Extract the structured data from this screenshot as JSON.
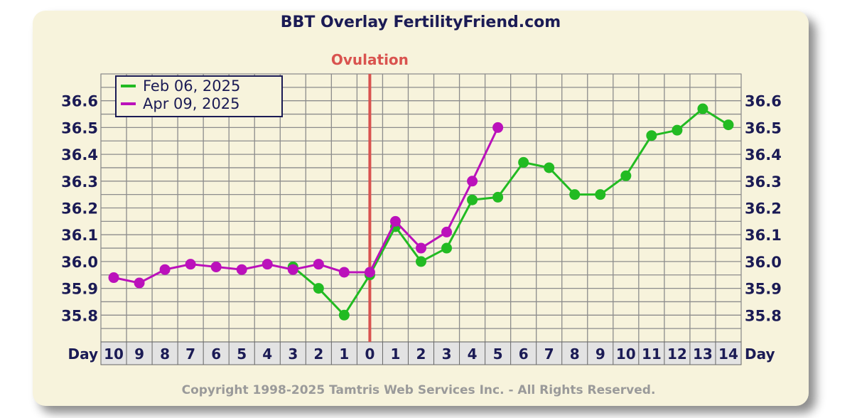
{
  "chart_data": {
    "type": "line",
    "title": "BBT Overlay FertilityFriend.com",
    "annotation": "Ovulation",
    "ovulation_day": 0,
    "xlabel": "Day",
    "ylim": [
      35.7,
      36.7
    ],
    "y_ticks": [
      "36.6",
      "36.5",
      "36.4",
      "36.3",
      "36.2",
      "36.1",
      "36.0",
      "35.9",
      "35.8"
    ],
    "categories": [
      "10",
      "9",
      "8",
      "7",
      "6",
      "5",
      "4",
      "3",
      "2",
      "1",
      "0",
      "1",
      "2",
      "3",
      "4",
      "5",
      "6",
      "7",
      "8",
      "9",
      "10",
      "11",
      "12",
      "13",
      "14"
    ],
    "series": [
      {
        "name": "Feb 06, 2025",
        "color": "#22bb22",
        "values": [
          null,
          null,
          null,
          null,
          null,
          null,
          null,
          35.98,
          35.9,
          35.8,
          35.95,
          36.13,
          36.0,
          36.05,
          36.23,
          36.24,
          36.37,
          36.35,
          36.25,
          36.25,
          36.32,
          36.47,
          36.49,
          36.57,
          36.51
        ]
      },
      {
        "name": "Apr 09, 2025",
        "color": "#bb11bb",
        "values": [
          35.94,
          35.92,
          35.97,
          35.99,
          35.98,
          35.97,
          35.99,
          35.97,
          35.99,
          35.96,
          35.96,
          36.15,
          36.05,
          36.11,
          36.3,
          36.5,
          null,
          null,
          null,
          null,
          null,
          null,
          null,
          null,
          null
        ]
      }
    ],
    "legend_position": "top-left",
    "grid": true,
    "copyright": "Copyright 1998-2025 Tamtris Web Services Inc. - All Rights Reserved."
  }
}
